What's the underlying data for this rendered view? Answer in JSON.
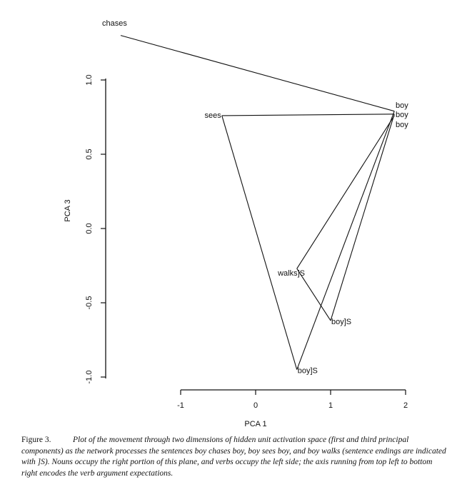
{
  "chart_data": {
    "type": "line",
    "title": "",
    "xlabel": "PCA 1",
    "ylabel": "PCA 3",
    "xlim": [
      -1,
      2
    ],
    "ylim": [
      -1,
      1
    ],
    "xticks": [
      -1,
      0,
      1,
      2
    ],
    "xtick_labels": [
      "-1",
      "0",
      "1",
      "2"
    ],
    "yticks": [
      -1,
      -0.5,
      0,
      0.5,
      1
    ],
    "ytick_labels": [
      "-1.0",
      "-0.5",
      "0.0",
      "0.5",
      "1.0"
    ],
    "grid": false,
    "legend": "none",
    "line_color": "#111111",
    "path": [
      {
        "x": -1.8,
        "y": 1.3,
        "label": "boy",
        "show_label": false
      },
      {
        "x": -1.8,
        "y": 1.3,
        "label": "chases",
        "show_label": true
      },
      {
        "x": 1.85,
        "y": 0.79,
        "label": "boy",
        "show_label": true
      },
      {
        "x": 0.55,
        "y": -0.95,
        "label": "boy]S",
        "show_label": true
      },
      {
        "x": -0.45,
        "y": 0.76,
        "label": "sees",
        "show_label": true
      },
      {
        "x": 1.85,
        "y": 0.77,
        "label": "boy",
        "show_label": true
      },
      {
        "x": 1.0,
        "y": -0.62,
        "label": "boy]S",
        "show_label": true
      },
      {
        "x": 0.55,
        "y": -0.27,
        "label": "walks]S",
        "show_label": true
      },
      {
        "x": 1.85,
        "y": 0.76,
        "label": "boy",
        "show_label": true
      }
    ]
  },
  "caption": {
    "figure_label": "Figure 3.",
    "text": "Plot of the movement through two dimensions of hidden unit activation space (first and third principal components) as the network processes the sentences boy chases boy, boy sees boy, and boy walks (sentence endings are indicated with ]S). Nouns occupy the right portion of this plane, and verbs occupy the left side; the axis running from top left to bottom right encodes the verb argument expectations."
  }
}
